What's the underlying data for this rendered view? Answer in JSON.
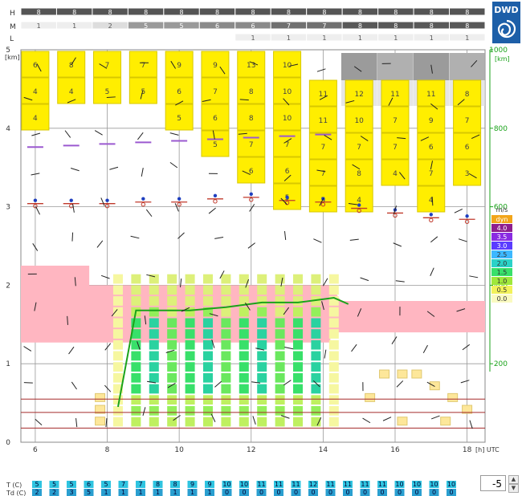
{
  "brand": "DWD",
  "rows": {
    "labels": [
      "H",
      "M",
      "L"
    ],
    "H": [
      "8",
      "8",
      "8",
      "8",
      "8",
      "8",
      "8",
      "8",
      "8",
      "8",
      "8",
      "8",
      "8"
    ],
    "M": [
      "1",
      "1",
      "2",
      "5",
      "5",
      "6",
      "6",
      "7",
      "7",
      "8",
      "8",
      "8",
      "8"
    ],
    "L": [
      "",
      "",
      "",
      "",
      "",
      "",
      "1",
      "1",
      "1",
      "1",
      "1",
      "1",
      "1"
    ]
  },
  "axes": {
    "km_unit": "[km]",
    "y_ticks": [
      "0",
      "1",
      "2",
      "3",
      "4",
      "5"
    ],
    "right_unit": "1000\n[km]",
    "right_ticks": [
      "200",
      "400",
      "600",
      "800",
      "1000"
    ],
    "x_ticks": [
      "6",
      "8",
      "10",
      "12",
      "14",
      "16",
      "18"
    ],
    "x_unit": "[h]  UTC"
  },
  "legend": {
    "title": "m/s",
    "items": [
      {
        "label": "dyn",
        "color": "#f2a51a"
      },
      {
        "label": "4.0",
        "color": "#8e1f8e"
      },
      {
        "label": "3.5",
        "color": "#8a2be2"
      },
      {
        "label": "3.0",
        "color": "#5a3cff"
      },
      {
        "label": "2.5",
        "color": "#3cb8ff"
      },
      {
        "label": "2.0",
        "color": "#2ad2c8"
      },
      {
        "label": "1.5",
        "color": "#38e06a"
      },
      {
        "label": "1.0",
        "color": "#9fe83a"
      },
      {
        "label": "0.5",
        "color": "#f2f25a"
      },
      {
        "label": "0.0",
        "color": "#fafac0"
      }
    ]
  },
  "t_row": {
    "label_t": "T  (C)",
    "label_td": "Td (C)",
    "T": [
      "5",
      "5",
      "5",
      "6",
      "5",
      "7",
      "7",
      "8",
      "8",
      "9",
      "9",
      "10",
      "10",
      "11",
      "11",
      "11",
      "12",
      "11",
      "11",
      "11",
      "11",
      "10",
      "10",
      "10",
      "10"
    ],
    "Td": [
      "2",
      "2",
      "3",
      "5",
      "1",
      "1",
      "1",
      "1",
      "1",
      "1",
      "1",
      "0",
      "0",
      "0",
      "0",
      "0",
      "0",
      "0",
      "0",
      "0",
      "0",
      "0",
      "0",
      "0",
      "0"
    ]
  },
  "spinner": {
    "value": "-5",
    "up": "▲",
    "down": "▼"
  },
  "chart_data": {
    "type": "heatmap",
    "x_range": [
      5.6,
      18.5
    ],
    "y_range_km": [
      0,
      5
    ],
    "cloud_cover_high": [
      8,
      8,
      8,
      8,
      8,
      8,
      8,
      8,
      8,
      8,
      8,
      8,
      8
    ],
    "cloud_cover_mid": [
      1,
      1,
      2,
      5,
      5,
      6,
      6,
      7,
      7,
      8,
      8,
      8,
      8
    ],
    "cloud_cover_low": [
      null,
      null,
      null,
      null,
      null,
      null,
      1,
      1,
      1,
      1,
      1,
      1,
      1
    ],
    "upper_cloud_columns": [
      {
        "x": 6,
        "values": [
          6,
          4,
          4
        ]
      },
      {
        "x": 7,
        "values": [
          8,
          4
        ]
      },
      {
        "x": 8,
        "values": [
          7,
          5
        ]
      },
      {
        "x": 9,
        "values": [
          7,
          5
        ]
      },
      {
        "x": 10,
        "values": [
          9,
          6,
          5
        ]
      },
      {
        "x": 11,
        "values": [
          9,
          7,
          6,
          5
        ]
      },
      {
        "x": 12,
        "values": [
          13,
          8,
          8,
          7,
          6
        ]
      },
      {
        "x": 13,
        "values": [
          10,
          10,
          10,
          7,
          6,
          5
        ]
      },
      {
        "x": 14,
        "values": [
          11,
          11,
          7,
          7,
          5
        ]
      },
      {
        "x": 15,
        "values": [
          12,
          10,
          7,
          8,
          4
        ]
      },
      {
        "x": 16,
        "values": [
          11,
          7,
          7,
          4
        ]
      },
      {
        "x": 17,
        "values": [
          11,
          9,
          6,
          7,
          4
        ]
      },
      {
        "x": 18,
        "values": [
          8,
          7,
          6,
          3
        ]
      }
    ],
    "freezing_level_km": [
      3.04,
      3.04,
      3.04,
      3.06,
      3.06,
      3.1,
      3.12,
      3.08,
      3.06,
      2.98,
      2.92,
      2.86,
      2.84
    ],
    "green_line_km": [
      0.45,
      1.68,
      1.68,
      1.68,
      1.72,
      1.78,
      1.78,
      1.84,
      1.76
    ]
  }
}
